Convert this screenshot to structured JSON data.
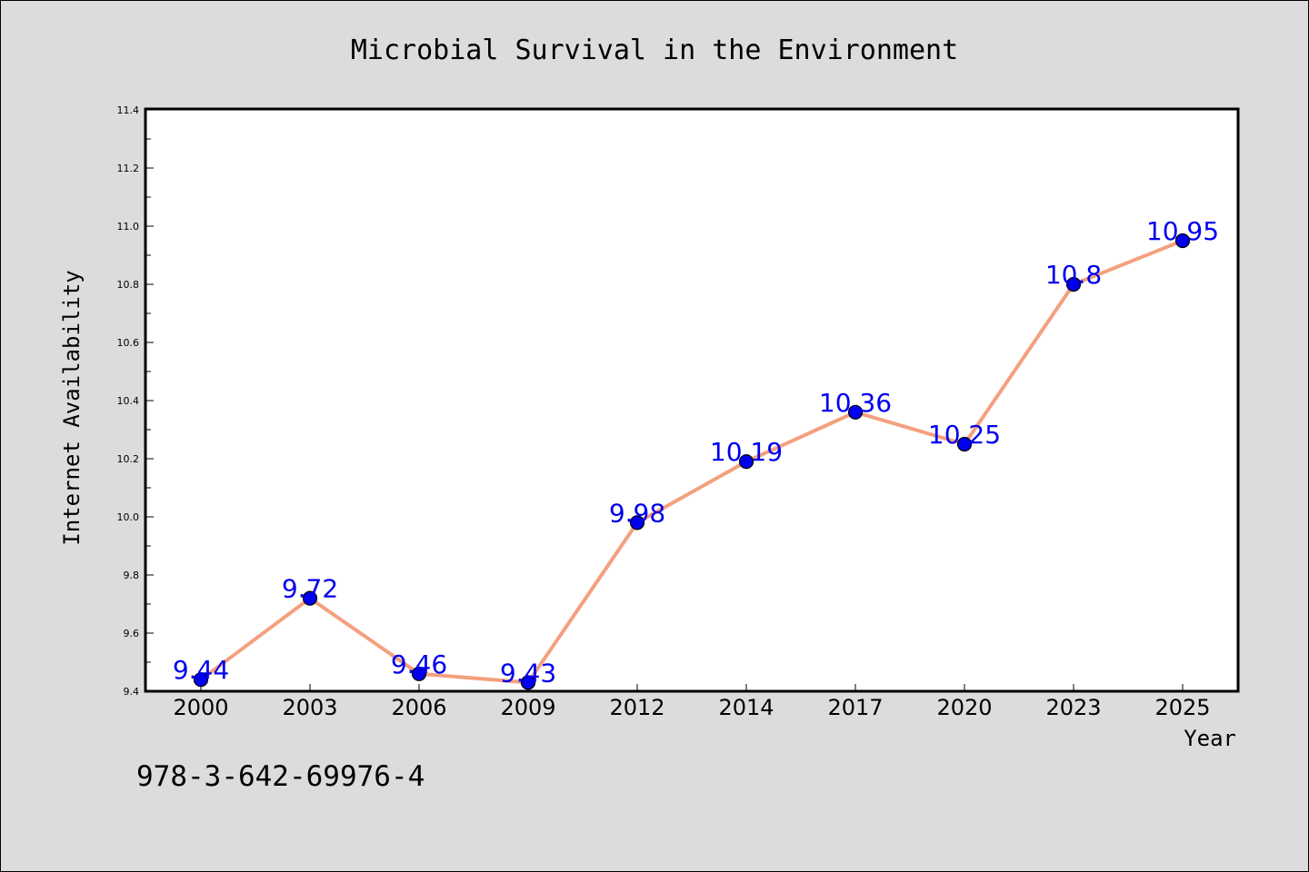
{
  "chart_data": {
    "type": "line",
    "title": "Microbial Survival in the Environment",
    "xlabel": "Year",
    "ylabel": "Internet Availability",
    "categories": [
      "2000",
      "2003",
      "2006",
      "2009",
      "2012",
      "2014",
      "2017",
      "2020",
      "2023",
      "2025"
    ],
    "series": [
      {
        "values": [
          9.44,
          9.72,
          9.46,
          9.43,
          9.98,
          10.19,
          10.36,
          10.25,
          10.8,
          10.95
        ],
        "labels": [
          "9.44",
          "9.72",
          "9.46",
          "9.43",
          "9.98",
          "10.19",
          "10.36",
          "10.25",
          "10.8",
          "10.95"
        ],
        "line_color": "#f4a07e",
        "marker_color": "#0000ee",
        "label_color": "#0000ee"
      }
    ],
    "ylim": [
      9.4,
      11.4
    ],
    "yticks": [
      "9.4",
      "9.6",
      "9.8",
      "10.0",
      "10.2",
      "10.4",
      "10.6",
      "10.8",
      "11.0",
      "11.2",
      "11.4"
    ],
    "grid": false,
    "annotation": "978-3-642-69976-4",
    "background_color": "#dcdcdc",
    "plot_background_color": "#ffffff"
  }
}
